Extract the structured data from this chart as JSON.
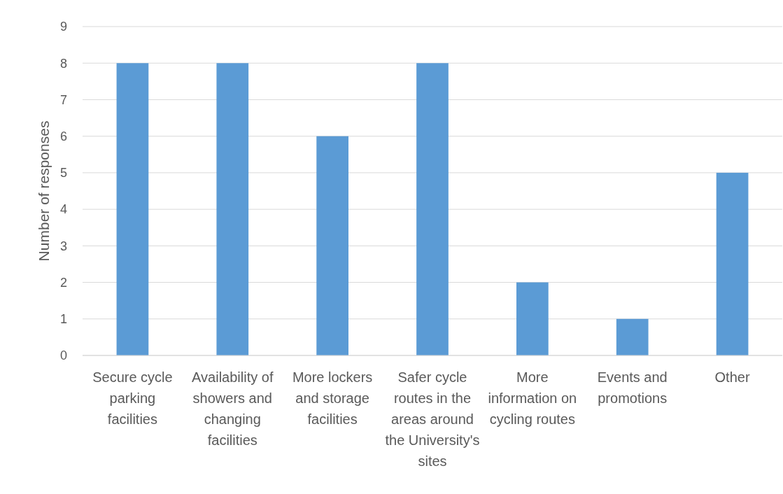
{
  "chart_data": {
    "type": "bar",
    "ylabel": "Number of responses",
    "categories": [
      "Secure cycle parking facilities",
      "Availability of showers and changing facilities",
      "More lockers and storage facilities",
      "Safer cycle routes in the areas around the University's sites",
      "More information on cycling routes",
      "Events and promotions",
      "Other"
    ],
    "values": [
      8,
      8,
      6,
      8,
      2,
      1,
      5
    ],
    "color": "#5b9bd5",
    "ylim": [
      0,
      9
    ],
    "yticks": [
      0,
      1,
      2,
      3,
      4,
      5,
      6,
      7,
      8,
      9
    ],
    "grid": "y"
  }
}
